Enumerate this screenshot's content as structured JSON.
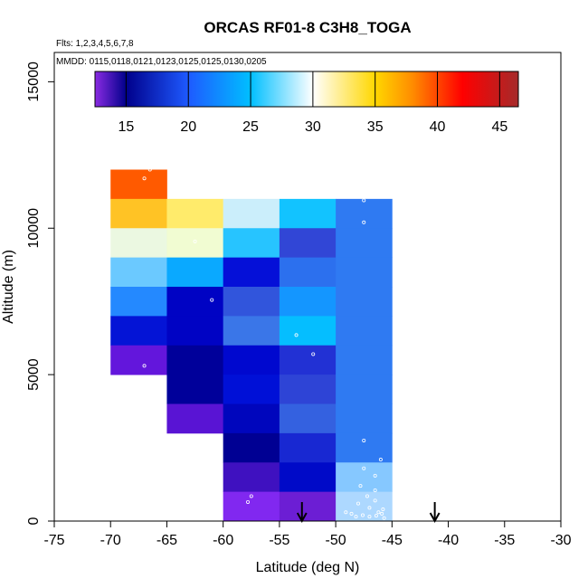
{
  "chart_data": {
    "type": "heatmap",
    "title": "ORCAS RF01-8 C3H8_TOGA",
    "annotations": [
      "Flts: 1,2,3,4,5,6,7,8",
      "MMDD: 0115,0118,0121,0123,0125,0125,0130,0205"
    ],
    "xlabel": "Latitude (deg N)",
    "ylabel": "Altitude (m)",
    "xlim": [
      -75,
      -30
    ],
    "ylim": [
      0,
      16000
    ],
    "x_ticks": [
      -75,
      -70,
      -65,
      -60,
      -55,
      -50,
      -45,
      -40,
      -35,
      -30
    ],
    "y_ticks": [
      0,
      5000,
      10000,
      15000
    ],
    "grid": false,
    "colorbar": {
      "range": [
        12.5,
        46.5
      ],
      "ticks": [
        15,
        20,
        25,
        30,
        35,
        40,
        45
      ],
      "stops": [
        {
          "v": 12.5,
          "c": "#8a2be2"
        },
        {
          "v": 15,
          "c": "#00008b"
        },
        {
          "v": 20,
          "c": "#1e5aff"
        },
        {
          "v": 25,
          "c": "#00bfff"
        },
        {
          "v": 30,
          "c": "#ffffff"
        },
        {
          "v": 35,
          "c": "#ffd700"
        },
        {
          "v": 38,
          "c": "#ff8c00"
        },
        {
          "v": 42,
          "c": "#ff0000"
        },
        {
          "v": 46.5,
          "c": "#a52a2a"
        }
      ]
    },
    "bin_width_deg": 5,
    "bin_height_m": 1000,
    "cells": [
      {
        "lon_start": -70,
        "alt_start": 11000,
        "value": 39,
        "color": "#ff5a00"
      },
      {
        "lon_start": -70,
        "alt_start": 10000,
        "value": 36,
        "color": "#ffc325"
      },
      {
        "lon_start": -70,
        "alt_start": 9000,
        "value": 30.5,
        "color": "#ebf8e1"
      },
      {
        "lon_start": -70,
        "alt_start": 8000,
        "value": 26,
        "color": "#6bc9ff"
      },
      {
        "lon_start": -70,
        "alt_start": 7000,
        "value": 21,
        "color": "#2489ff"
      },
      {
        "lon_start": -70,
        "alt_start": 6000,
        "value": 16.5,
        "color": "#0414d6"
      },
      {
        "lon_start": -70,
        "alt_start": 5000,
        "value": 13.5,
        "color": "#6316dc"
      },
      {
        "lon_start": -65,
        "alt_start": 10000,
        "value": 34,
        "color": "#ffeb6b"
      },
      {
        "lon_start": -65,
        "alt_start": 9000,
        "value": 31.5,
        "color": "#f1fcd2"
      },
      {
        "lon_start": -65,
        "alt_start": 8000,
        "value": 24,
        "color": "#0aa9ff"
      },
      {
        "lon_start": -65,
        "alt_start": 7000,
        "value": 16,
        "color": "#0003c4"
      },
      {
        "lon_start": -65,
        "alt_start": 6000,
        "value": 16,
        "color": "#0003c4"
      },
      {
        "lon_start": -65,
        "alt_start": 5000,
        "value": 15.5,
        "color": "#00009a"
      },
      {
        "lon_start": -65,
        "alt_start": 4000,
        "value": 15.5,
        "color": "#00009a"
      },
      {
        "lon_start": -65,
        "alt_start": 3000,
        "value": 14,
        "color": "#5914d4"
      },
      {
        "lon_start": -60,
        "alt_start": 10000,
        "value": 29,
        "color": "#cbeefb"
      },
      {
        "lon_start": -60,
        "alt_start": 9000,
        "value": 25.5,
        "color": "#27c4ff"
      },
      {
        "lon_start": -60,
        "alt_start": 8000,
        "value": 16.5,
        "color": "#0510d8"
      },
      {
        "lon_start": -60,
        "alt_start": 7000,
        "value": 19,
        "color": "#3155dc"
      },
      {
        "lon_start": -60,
        "alt_start": 6000,
        "value": 20.5,
        "color": "#3a76e8"
      },
      {
        "lon_start": -60,
        "alt_start": 5000,
        "value": 16.5,
        "color": "#0008cf"
      },
      {
        "lon_start": -60,
        "alt_start": 4000,
        "value": 16.5,
        "color": "#0010d7"
      },
      {
        "lon_start": -60,
        "alt_start": 3000,
        "value": 16,
        "color": "#0006bd"
      },
      {
        "lon_start": -60,
        "alt_start": 2000,
        "value": 15.5,
        "color": "#000093"
      },
      {
        "lon_start": -60,
        "alt_start": 1000,
        "value": 14,
        "color": "#3f11c0"
      },
      {
        "lon_start": -60,
        "alt_start": 0,
        "value": 13.5,
        "color": "#8128f0"
      },
      {
        "lon_start": -55,
        "alt_start": 10000,
        "value": 25.5,
        "color": "#12c3ff"
      },
      {
        "lon_start": -55,
        "alt_start": 9000,
        "value": 18,
        "color": "#3146d6"
      },
      {
        "lon_start": -55,
        "alt_start": 8000,
        "value": 20.5,
        "color": "#2c70ee"
      },
      {
        "lon_start": -55,
        "alt_start": 7000,
        "value": 23,
        "color": "#1496ff"
      },
      {
        "lon_start": -55,
        "alt_start": 6000,
        "value": 25,
        "color": "#05beff"
      },
      {
        "lon_start": -55,
        "alt_start": 5000,
        "value": 17.5,
        "color": "#2231d4"
      },
      {
        "lon_start": -55,
        "alt_start": 4000,
        "value": 18,
        "color": "#2e44d6"
      },
      {
        "lon_start": -55,
        "alt_start": 3000,
        "value": 19,
        "color": "#3461e0"
      },
      {
        "lon_start": -55,
        "alt_start": 2000,
        "value": 17.5,
        "color": "#1828d2"
      },
      {
        "lon_start": -55,
        "alt_start": 1000,
        "value": 16.5,
        "color": "#000ac8"
      },
      {
        "lon_start": -55,
        "alt_start": 0,
        "value": 13.5,
        "color": "#6c1ed4"
      },
      {
        "lon_start": -50,
        "alt_start": 10000,
        "value": 20.5,
        "color": "#2f7af2"
      },
      {
        "lon_start": -50,
        "alt_start": 9000,
        "value": 20.5,
        "color": "#2f7af2"
      },
      {
        "lon_start": -50,
        "alt_start": 8000,
        "value": 20.5,
        "color": "#2f7af2"
      },
      {
        "lon_start": -50,
        "alt_start": 7000,
        "value": 20.5,
        "color": "#2f7af2"
      },
      {
        "lon_start": -50,
        "alt_start": 6000,
        "value": 20.5,
        "color": "#2f7af2"
      },
      {
        "lon_start": -50,
        "alt_start": 5000,
        "value": 20.5,
        "color": "#2f7af2"
      },
      {
        "lon_start": -50,
        "alt_start": 4000,
        "value": 20.5,
        "color": "#2f7af2"
      },
      {
        "lon_start": -50,
        "alt_start": 3000,
        "value": 20.5,
        "color": "#2f7af2"
      },
      {
        "lon_start": -50,
        "alt_start": 2000,
        "value": 20.5,
        "color": "#2f7af2"
      },
      {
        "lon_start": -50,
        "alt_start": 1000,
        "value": 27,
        "color": "#86c8ff"
      },
      {
        "lon_start": -50,
        "alt_start": 0,
        "value": 28,
        "color": "#add8ff"
      }
    ],
    "points": [
      {
        "lon": -66.5,
        "alt": 12000
      },
      {
        "lon": -67,
        "alt": 11700
      },
      {
        "lon": -47.5,
        "alt": 10950
      },
      {
        "lon": -47.5,
        "alt": 10200
      },
      {
        "lon": -62.5,
        "alt": 9550
      },
      {
        "lon": -61,
        "alt": 7550
      },
      {
        "lon": -53.5,
        "alt": 6350
      },
      {
        "lon": -52,
        "alt": 5700
      },
      {
        "lon": -67,
        "alt": 5300
      },
      {
        "lon": -47.5,
        "alt": 2750
      },
      {
        "lon": -46,
        "alt": 2100
      },
      {
        "lon": -47.5,
        "alt": 1800
      },
      {
        "lon": -46.5,
        "alt": 1550
      },
      {
        "lon": -47.8,
        "alt": 1200
      },
      {
        "lon": -46.5,
        "alt": 1050
      },
      {
        "lon": -47.2,
        "alt": 850
      },
      {
        "lon": -48,
        "alt": 600
      },
      {
        "lon": -47,
        "alt": 450
      },
      {
        "lon": -46.2,
        "alt": 300
      },
      {
        "lon": -48.6,
        "alt": 250
      },
      {
        "lon": -48.2,
        "alt": 150
      },
      {
        "lon": -47.6,
        "alt": 200
      },
      {
        "lon": -47,
        "alt": 150
      },
      {
        "lon": -46.4,
        "alt": 180
      },
      {
        "lon": -45.9,
        "alt": 250
      },
      {
        "lon": -45.8,
        "alt": 400
      },
      {
        "lon": -46.5,
        "alt": 700
      },
      {
        "lon": -49.1,
        "alt": 300
      },
      {
        "lon": -45.7,
        "alt": 100
      },
      {
        "lon": -57.8,
        "alt": 650
      },
      {
        "lon": -57.5,
        "alt": 850
      }
    ],
    "arrows": [
      {
        "lon": -53
      },
      {
        "lon": -41.2
      }
    ]
  }
}
